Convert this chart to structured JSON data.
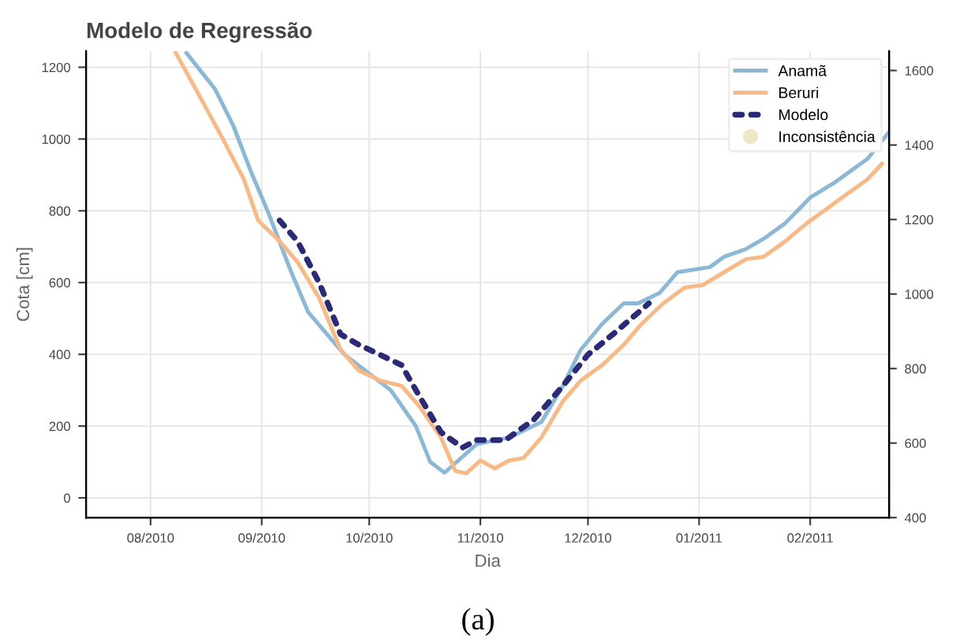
{
  "chart_data": {
    "type": "line",
    "title": "Modelo de Regressão",
    "xlabel": "Dia",
    "ylabel": "Cota [cm]",
    "xlim": [
      "2010-07-14",
      "2011-02-23"
    ],
    "xticks": [
      {
        "value": "2010-08-01",
        "label": "08/2010"
      },
      {
        "value": "2010-09-01",
        "label": "09/2010"
      },
      {
        "value": "2010-10-01",
        "label": "10/2010"
      },
      {
        "value": "2010-11-01",
        "label": "11/2010"
      },
      {
        "value": "2010-12-01",
        "label": "12/2010"
      },
      {
        "value": "2011-01-01",
        "label": "01/2011"
      },
      {
        "value": "2011-02-01",
        "label": "02/2011"
      }
    ],
    "ylim": [
      -55,
      1245
    ],
    "yticks": [
      0,
      200,
      400,
      600,
      800,
      1000,
      1200
    ],
    "y2lim": [
      400,
      1652
    ],
    "y2ticks": [
      400,
      600,
      800,
      1000,
      1200,
      1400,
      1600
    ],
    "grid": true,
    "legend": "top right",
    "series": [
      {
        "name": "Anamã",
        "color": "#8cb8d8",
        "line_style": "solid",
        "x": [
          "2010-08-11",
          "2010-08-19",
          "2010-08-24",
          "2010-08-29",
          "2010-09-03",
          "2010-09-09",
          "2010-09-14",
          "2010-09-24",
          "2010-10-07",
          "2010-10-14",
          "2010-10-18",
          "2010-10-22",
          "2010-10-31",
          "2010-11-09",
          "2010-11-18",
          "2010-11-24",
          "2010-11-29",
          "2010-12-05",
          "2010-12-11",
          "2010-12-15",
          "2010-12-21",
          "2010-12-26",
          "2011-01-04",
          "2011-01-08",
          "2011-01-14",
          "2011-01-19",
          "2011-01-25",
          "2011-02-01",
          "2011-02-08",
          "2011-02-17",
          "2011-02-23"
        ],
        "values": [
          1240,
          1139,
          1039,
          909,
          791,
          635,
          517,
          400,
          300,
          200,
          100,
          70,
          150,
          168,
          211,
          312,
          413,
          485,
          542,
          542,
          571,
          629,
          643,
          672,
          693,
          722,
          765,
          837,
          880,
          945,
          1020
        ]
      },
      {
        "name": "Beruri",
        "color": "#f9b984",
        "line_style": "solid",
        "x": [
          "2010-08-08",
          "2010-08-14",
          "2010-08-21",
          "2010-08-27",
          "2010-08-31",
          "2010-09-06",
          "2010-09-11",
          "2010-09-17",
          "2010-09-23",
          "2010-09-28",
          "2010-10-04",
          "2010-10-10",
          "2010-10-15",
          "2010-10-21",
          "2010-10-25",
          "2010-10-28",
          "2010-11-01",
          "2010-11-05",
          "2010-11-09",
          "2010-11-13",
          "2010-11-18",
          "2010-11-24",
          "2010-11-29",
          "2010-12-05",
          "2010-12-11",
          "2010-12-16",
          "2010-12-22",
          "2010-12-28",
          "2011-01-02",
          "2011-01-08",
          "2011-01-14",
          "2011-01-19",
          "2011-01-25",
          "2011-01-31",
          "2011-02-05",
          "2011-02-11",
          "2011-02-17",
          "2011-02-21"
        ],
        "values": [
          1240,
          1132,
          1003,
          888,
          773,
          715,
          657,
          557,
          413,
          355,
          327,
          312,
          255,
          168,
          75,
          68,
          104,
          82,
          104,
          111,
          168,
          269,
          327,
          370,
          427,
          485,
          542,
          586,
          593,
          629,
          665,
          672,
          715,
          765,
          801,
          845,
          888,
          931
        ]
      },
      {
        "name": "Modelo",
        "color": "#2a2a78",
        "line_style": "dotted",
        "x": [
          "2010-09-06",
          "2010-09-11",
          "2010-09-17",
          "2010-09-23",
          "2010-09-28",
          "2010-10-04",
          "2010-10-10",
          "2010-10-15",
          "2010-10-21",
          "2010-10-27",
          "2010-10-31",
          "2010-11-08",
          "2010-11-16",
          "2010-11-24",
          "2010-12-01",
          "2010-12-08",
          "2010-12-13",
          "2010-12-18"
        ],
        "values": [
          773,
          715,
          600,
          456,
          427,
          399,
          370,
          283,
          183,
          140,
          161,
          161,
          219,
          312,
          399,
          456,
          499,
          542
        ]
      },
      {
        "name": "Inconsistência",
        "color": "#efe6c6",
        "type": "scatter",
        "marker": "circle"
      }
    ],
    "annotations": [
      "(a)"
    ]
  }
}
